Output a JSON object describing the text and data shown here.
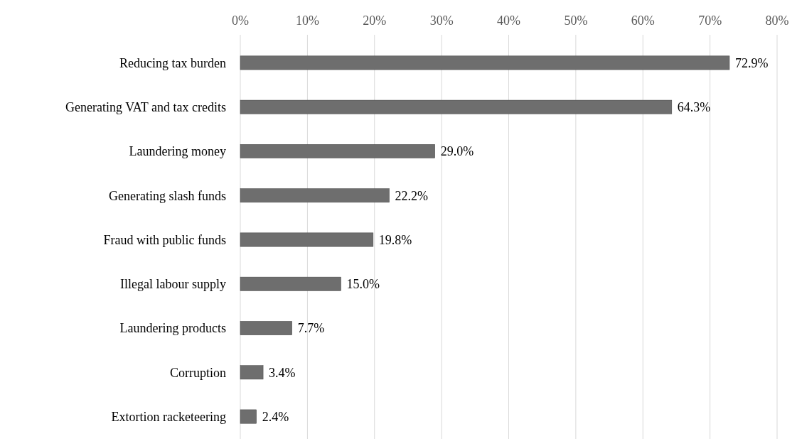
{
  "chart_data": {
    "type": "bar",
    "orientation": "horizontal",
    "categories": [
      "Reducing tax burden",
      "Generating VAT and tax credits",
      "Laundering money",
      "Generating slash funds",
      "Fraud with public funds",
      "Illegal labour supply",
      "Laundering products",
      "Corruption",
      "Extortion racketeering"
    ],
    "values": [
      72.9,
      64.3,
      29.0,
      22.2,
      19.8,
      15.0,
      7.7,
      3.4,
      2.4
    ],
    "value_labels": [
      "72.9%",
      "64.3%",
      "29.0%",
      "22.2%",
      "19.8%",
      "15.0%",
      "7.7%",
      "3.4%",
      "2.4%"
    ],
    "color": "#6e6e6e",
    "xlim": [
      0,
      80
    ],
    "xticks": [
      {
        "value": 0,
        "label": "0%"
      },
      {
        "value": 10,
        "label": "10%"
      },
      {
        "value": 20,
        "label": "20%"
      },
      {
        "value": 30,
        "label": "30%"
      },
      {
        "value": 40,
        "label": "40%"
      },
      {
        "value": 50,
        "label": "50%"
      },
      {
        "value": 60,
        "label": "60%"
      },
      {
        "value": 70,
        "label": "70%"
      },
      {
        "value": 80,
        "label": "80%"
      }
    ],
    "grid": "x"
  }
}
